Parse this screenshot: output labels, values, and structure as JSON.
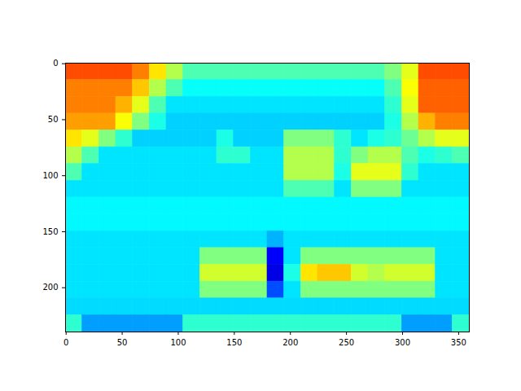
{
  "chart_data": {
    "type": "heatmap",
    "color": "jet",
    "color_range": [
      0,
      1
    ],
    "xlim": [
      -0.5,
      359.5
    ],
    "ylim": [
      239.5,
      -0.5
    ],
    "xticks": [
      0,
      50,
      100,
      150,
      200,
      250,
      300,
      350
    ],
    "yticks": [
      0,
      50,
      100,
      150,
      200
    ],
    "grid": false,
    "cells": [
      [
        0.8,
        0.8,
        0.8,
        0.8,
        0.75,
        0.65,
        0.55,
        0.45,
        0.45,
        0.45,
        0.45,
        0.45,
        0.45,
        0.45,
        0.45,
        0.45,
        0.45,
        0.45,
        0.45,
        0.5,
        0.6,
        0.8,
        0.8,
        0.8
      ],
      [
        0.75,
        0.75,
        0.75,
        0.75,
        0.68,
        0.55,
        0.45,
        0.38,
        0.38,
        0.38,
        0.38,
        0.38,
        0.38,
        0.38,
        0.38,
        0.38,
        0.38,
        0.38,
        0.38,
        0.45,
        0.62,
        0.78,
        0.78,
        0.78
      ],
      [
        0.75,
        0.75,
        0.75,
        0.7,
        0.6,
        0.45,
        0.35,
        0.35,
        0.35,
        0.35,
        0.35,
        0.35,
        0.35,
        0.35,
        0.35,
        0.35,
        0.35,
        0.35,
        0.35,
        0.42,
        0.6,
        0.78,
        0.78,
        0.78
      ],
      [
        0.72,
        0.72,
        0.72,
        0.62,
        0.5,
        0.4,
        0.33,
        0.33,
        0.33,
        0.33,
        0.33,
        0.33,
        0.33,
        0.33,
        0.33,
        0.33,
        0.33,
        0.33,
        0.33,
        0.4,
        0.55,
        0.7,
        0.75,
        0.75
      ],
      [
        0.65,
        0.6,
        0.5,
        0.42,
        0.33,
        0.33,
        0.33,
        0.33,
        0.33,
        0.4,
        0.33,
        0.33,
        0.33,
        0.5,
        0.5,
        0.5,
        0.42,
        0.35,
        0.4,
        0.42,
        0.48,
        0.55,
        0.6,
        0.6
      ],
      [
        0.55,
        0.45,
        0.35,
        0.35,
        0.35,
        0.35,
        0.35,
        0.35,
        0.35,
        0.42,
        0.42,
        0.35,
        0.35,
        0.55,
        0.55,
        0.55,
        0.42,
        0.5,
        0.55,
        0.55,
        0.45,
        0.4,
        0.42,
        0.45
      ],
      [
        0.45,
        0.35,
        0.35,
        0.35,
        0.35,
        0.35,
        0.35,
        0.35,
        0.35,
        0.35,
        0.35,
        0.35,
        0.35,
        0.55,
        0.55,
        0.55,
        0.4,
        0.6,
        0.6,
        0.6,
        0.42,
        0.35,
        0.35,
        0.35
      ],
      [
        0.35,
        0.35,
        0.35,
        0.35,
        0.35,
        0.35,
        0.35,
        0.35,
        0.35,
        0.35,
        0.35,
        0.35,
        0.35,
        0.45,
        0.45,
        0.45,
        0.35,
        0.5,
        0.5,
        0.5,
        0.35,
        0.35,
        0.35,
        0.35
      ],
      [
        0.37,
        0.37,
        0.37,
        0.37,
        0.37,
        0.37,
        0.37,
        0.37,
        0.37,
        0.37,
        0.37,
        0.37,
        0.37,
        0.37,
        0.37,
        0.37,
        0.37,
        0.37,
        0.37,
        0.37,
        0.37,
        0.37,
        0.37,
        0.37
      ],
      [
        0.37,
        0.37,
        0.37,
        0.37,
        0.37,
        0.37,
        0.37,
        0.37,
        0.37,
        0.37,
        0.37,
        0.37,
        0.37,
        0.37,
        0.37,
        0.37,
        0.37,
        0.37,
        0.37,
        0.37,
        0.37,
        0.37,
        0.37,
        0.37
      ],
      [
        0.35,
        0.35,
        0.35,
        0.35,
        0.35,
        0.35,
        0.35,
        0.35,
        0.35,
        0.35,
        0.35,
        0.35,
        0.3,
        0.35,
        0.35,
        0.35,
        0.35,
        0.35,
        0.35,
        0.35,
        0.35,
        0.35,
        0.35,
        0.35
      ],
      [
        0.35,
        0.35,
        0.35,
        0.35,
        0.35,
        0.35,
        0.35,
        0.35,
        0.5,
        0.5,
        0.5,
        0.5,
        0.12,
        0.35,
        0.5,
        0.5,
        0.5,
        0.5,
        0.5,
        0.5,
        0.5,
        0.5,
        0.35,
        0.35
      ],
      [
        0.35,
        0.35,
        0.35,
        0.35,
        0.35,
        0.35,
        0.35,
        0.35,
        0.58,
        0.58,
        0.58,
        0.58,
        0.1,
        0.4,
        0.65,
        0.68,
        0.68,
        0.58,
        0.55,
        0.58,
        0.58,
        0.58,
        0.35,
        0.35
      ],
      [
        0.35,
        0.35,
        0.35,
        0.35,
        0.35,
        0.35,
        0.35,
        0.35,
        0.5,
        0.5,
        0.5,
        0.5,
        0.2,
        0.35,
        0.5,
        0.5,
        0.5,
        0.5,
        0.5,
        0.5,
        0.5,
        0.5,
        0.35,
        0.35
      ],
      [
        0.34,
        0.34,
        0.34,
        0.34,
        0.34,
        0.34,
        0.34,
        0.34,
        0.34,
        0.34,
        0.34,
        0.34,
        0.34,
        0.34,
        0.34,
        0.34,
        0.34,
        0.34,
        0.34,
        0.34,
        0.34,
        0.34,
        0.34,
        0.34
      ],
      [
        0.42,
        0.28,
        0.28,
        0.28,
        0.28,
        0.28,
        0.28,
        0.42,
        0.42,
        0.42,
        0.42,
        0.42,
        0.42,
        0.42,
        0.42,
        0.42,
        0.42,
        0.42,
        0.42,
        0.42,
        0.28,
        0.28,
        0.28,
        0.42
      ]
    ]
  }
}
